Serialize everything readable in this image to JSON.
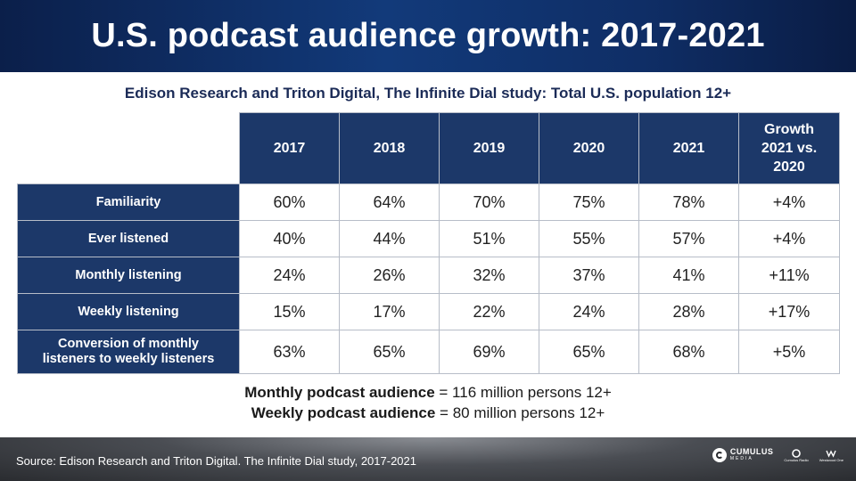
{
  "title": "U.S. podcast audience growth: 2017-2021",
  "subtitle": "Edison Research and Triton Digital, The Infinite Dial study: Total U.S. population 12+",
  "table": {
    "headers": [
      "2017",
      "2018",
      "2019",
      "2020",
      "2021"
    ],
    "growth_header": [
      "Growth",
      "2021 vs.",
      "2020"
    ],
    "rows": [
      {
        "label": [
          "Familiarity"
        ],
        "values": [
          "60%",
          "64%",
          "70%",
          "75%",
          "78%",
          "+4%"
        ]
      },
      {
        "label": [
          "Ever listened"
        ],
        "values": [
          "40%",
          "44%",
          "51%",
          "55%",
          "57%",
          "+4%"
        ]
      },
      {
        "label": [
          "Monthly listening"
        ],
        "values": [
          "24%",
          "26%",
          "32%",
          "37%",
          "41%",
          "+11%"
        ]
      },
      {
        "label": [
          "Weekly listening"
        ],
        "values": [
          "15%",
          "17%",
          "22%",
          "24%",
          "28%",
          "+17%"
        ]
      },
      {
        "label": [
          "Conversion of monthly",
          "listeners to weekly listeners"
        ],
        "values": [
          "63%",
          "65%",
          "69%",
          "65%",
          "68%",
          "+5%"
        ]
      }
    ]
  },
  "summary": {
    "monthly_bold": "Monthly podcast audience",
    "monthly_rest": " = 116 million persons 12+",
    "weekly_bold": "Weekly podcast audience",
    "weekly_rest": " = 80 million persons 12+"
  },
  "footer": {
    "source": "Source: Edison Research and Triton Digital. The Infinite Dial study, 2017-2021",
    "logo_main": "CUMULUS",
    "logo_main_sub": "MEDIA",
    "logo_2": "Cumulus Radio",
    "logo_3": "Westwood One"
  },
  "colors": {
    "header_navy": "#1c3869",
    "title_blue": "#123a7a",
    "subtitle_text": "#1b2b57"
  }
}
